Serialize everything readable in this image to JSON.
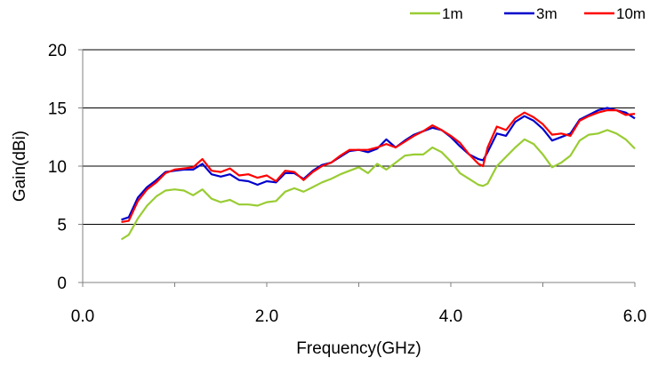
{
  "chart_data": {
    "type": "line",
    "title": "",
    "xlabel": "Frequency(GHz)",
    "ylabel": "Gain(dBi)",
    "xlim": [
      0,
      6
    ],
    "ylim": [
      0,
      20
    ],
    "x_ticks": [
      0,
      1,
      2,
      3,
      4,
      5,
      6
    ],
    "x_tick_labels": [
      "0.0",
      "",
      "2.0",
      "",
      "4.0",
      "",
      "6.0"
    ],
    "y_ticks": [
      0,
      5,
      10,
      15,
      20
    ],
    "y_tick_labels": [
      "0",
      "5",
      "10",
      "15",
      "20"
    ],
    "grid": "horizontal",
    "legend_position": "top-right",
    "series": [
      {
        "name": "1m",
        "color": "#99cc33",
        "points": [
          [
            0.42,
            3.7
          ],
          [
            0.5,
            4.1
          ],
          [
            0.6,
            5.5
          ],
          [
            0.7,
            6.6
          ],
          [
            0.8,
            7.4
          ],
          [
            0.9,
            7.9
          ],
          [
            1.0,
            8.0
          ],
          [
            1.1,
            7.9
          ],
          [
            1.2,
            7.5
          ],
          [
            1.3,
            8.0
          ],
          [
            1.4,
            7.2
          ],
          [
            1.5,
            6.9
          ],
          [
            1.6,
            7.1
          ],
          [
            1.7,
            6.7
          ],
          [
            1.8,
            6.7
          ],
          [
            1.9,
            6.6
          ],
          [
            2.0,
            6.9
          ],
          [
            2.1,
            7.0
          ],
          [
            2.2,
            7.8
          ],
          [
            2.3,
            8.1
          ],
          [
            2.4,
            7.8
          ],
          [
            2.5,
            8.2
          ],
          [
            2.6,
            8.6
          ],
          [
            2.7,
            8.9
          ],
          [
            2.8,
            9.3
          ],
          [
            2.9,
            9.6
          ],
          [
            3.0,
            9.9
          ],
          [
            3.1,
            9.4
          ],
          [
            3.2,
            10.2
          ],
          [
            3.3,
            9.7
          ],
          [
            3.4,
            10.3
          ],
          [
            3.5,
            10.9
          ],
          [
            3.6,
            11.0
          ],
          [
            3.7,
            11.0
          ],
          [
            3.8,
            11.6
          ],
          [
            3.9,
            11.2
          ],
          [
            4.0,
            10.4
          ],
          [
            4.1,
            9.4
          ],
          [
            4.2,
            8.9
          ],
          [
            4.3,
            8.4
          ],
          [
            4.35,
            8.3
          ],
          [
            4.4,
            8.5
          ],
          [
            4.5,
            10.0
          ],
          [
            4.6,
            10.8
          ],
          [
            4.7,
            11.6
          ],
          [
            4.8,
            12.3
          ],
          [
            4.9,
            11.9
          ],
          [
            5.0,
            11.0
          ],
          [
            5.1,
            9.9
          ],
          [
            5.2,
            10.3
          ],
          [
            5.3,
            10.9
          ],
          [
            5.4,
            12.2
          ],
          [
            5.5,
            12.7
          ],
          [
            5.6,
            12.8
          ],
          [
            5.7,
            13.1
          ],
          [
            5.8,
            12.8
          ],
          [
            5.9,
            12.3
          ],
          [
            6.0,
            11.5
          ]
        ]
      },
      {
        "name": "3m",
        "color": "#0000cc",
        "points": [
          [
            0.42,
            5.4
          ],
          [
            0.5,
            5.6
          ],
          [
            0.6,
            7.3
          ],
          [
            0.7,
            8.2
          ],
          [
            0.8,
            8.8
          ],
          [
            0.9,
            9.5
          ],
          [
            1.0,
            9.6
          ],
          [
            1.1,
            9.7
          ],
          [
            1.2,
            9.7
          ],
          [
            1.3,
            10.2
          ],
          [
            1.4,
            9.3
          ],
          [
            1.5,
            9.1
          ],
          [
            1.6,
            9.3
          ],
          [
            1.7,
            8.8
          ],
          [
            1.8,
            8.7
          ],
          [
            1.9,
            8.4
          ],
          [
            2.0,
            8.7
          ],
          [
            2.1,
            8.6
          ],
          [
            2.2,
            9.4
          ],
          [
            2.3,
            9.4
          ],
          [
            2.4,
            8.9
          ],
          [
            2.5,
            9.6
          ],
          [
            2.6,
            10.1
          ],
          [
            2.7,
            10.3
          ],
          [
            2.8,
            10.8
          ],
          [
            2.9,
            11.3
          ],
          [
            3.0,
            11.4
          ],
          [
            3.1,
            11.2
          ],
          [
            3.2,
            11.5
          ],
          [
            3.3,
            12.3
          ],
          [
            3.4,
            11.6
          ],
          [
            3.5,
            12.2
          ],
          [
            3.6,
            12.7
          ],
          [
            3.7,
            13.0
          ],
          [
            3.8,
            13.3
          ],
          [
            3.9,
            13.1
          ],
          [
            4.0,
            12.5
          ],
          [
            4.1,
            11.7
          ],
          [
            4.2,
            11.0
          ],
          [
            4.3,
            10.6
          ],
          [
            4.35,
            10.5
          ],
          [
            4.4,
            11.2
          ],
          [
            4.5,
            12.8
          ],
          [
            4.6,
            12.6
          ],
          [
            4.7,
            13.8
          ],
          [
            4.8,
            14.3
          ],
          [
            4.9,
            13.9
          ],
          [
            5.0,
            13.2
          ],
          [
            5.1,
            12.2
          ],
          [
            5.2,
            12.5
          ],
          [
            5.3,
            12.8
          ],
          [
            5.4,
            14.0
          ],
          [
            5.5,
            14.4
          ],
          [
            5.6,
            14.8
          ],
          [
            5.7,
            15.0
          ],
          [
            5.8,
            14.8
          ],
          [
            5.9,
            14.6
          ],
          [
            6.0,
            14.1
          ]
        ]
      },
      {
        "name": "10m",
        "color": "#ff0000",
        "points": [
          [
            0.42,
            5.2
          ],
          [
            0.5,
            5.3
          ],
          [
            0.6,
            7.0
          ],
          [
            0.7,
            8.0
          ],
          [
            0.8,
            8.6
          ],
          [
            0.9,
            9.4
          ],
          [
            1.0,
            9.7
          ],
          [
            1.1,
            9.8
          ],
          [
            1.2,
            9.9
          ],
          [
            1.3,
            10.6
          ],
          [
            1.4,
            9.6
          ],
          [
            1.5,
            9.5
          ],
          [
            1.6,
            9.8
          ],
          [
            1.7,
            9.2
          ],
          [
            1.8,
            9.3
          ],
          [
            1.9,
            9.0
          ],
          [
            2.0,
            9.2
          ],
          [
            2.1,
            8.7
          ],
          [
            2.2,
            9.6
          ],
          [
            2.3,
            9.5
          ],
          [
            2.4,
            8.8
          ],
          [
            2.5,
            9.5
          ],
          [
            2.6,
            10.0
          ],
          [
            2.7,
            10.3
          ],
          [
            2.8,
            10.9
          ],
          [
            2.9,
            11.4
          ],
          [
            3.0,
            11.4
          ],
          [
            3.1,
            11.4
          ],
          [
            3.2,
            11.6
          ],
          [
            3.3,
            11.9
          ],
          [
            3.4,
            11.6
          ],
          [
            3.5,
            12.1
          ],
          [
            3.6,
            12.6
          ],
          [
            3.7,
            13.0
          ],
          [
            3.8,
            13.5
          ],
          [
            3.9,
            13.1
          ],
          [
            4.0,
            12.6
          ],
          [
            4.1,
            12.0
          ],
          [
            4.2,
            11.0
          ],
          [
            4.3,
            10.2
          ],
          [
            4.35,
            10.0
          ],
          [
            4.4,
            11.6
          ],
          [
            4.5,
            13.4
          ],
          [
            4.6,
            13.1
          ],
          [
            4.7,
            14.1
          ],
          [
            4.8,
            14.6
          ],
          [
            4.9,
            14.2
          ],
          [
            5.0,
            13.6
          ],
          [
            5.1,
            12.7
          ],
          [
            5.2,
            12.8
          ],
          [
            5.3,
            12.6
          ],
          [
            5.4,
            13.9
          ],
          [
            5.5,
            14.3
          ],
          [
            5.6,
            14.6
          ],
          [
            5.7,
            14.8
          ],
          [
            5.8,
            14.8
          ],
          [
            5.9,
            14.4
          ],
          [
            6.0,
            14.5
          ]
        ]
      }
    ]
  }
}
